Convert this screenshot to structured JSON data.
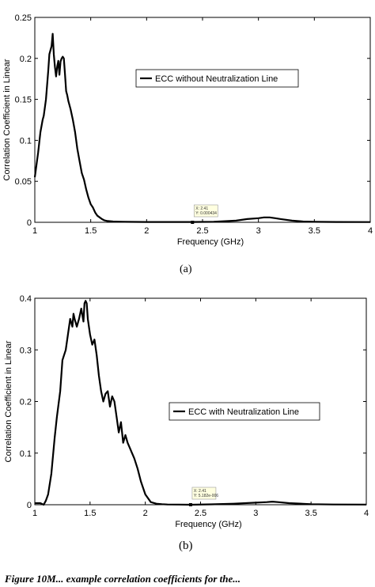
{
  "chart_data": [
    {
      "type": "line",
      "panel_label": "(a)",
      "xlabel": "Frequency (GHz)",
      "ylabel": "Correlation Coefficient in Linear",
      "xlim": [
        1,
        4
      ],
      "ylim": [
        0,
        0.25
      ],
      "xticks": [
        "1",
        "1.5",
        "2",
        "2.5",
        "3",
        "3.5",
        "4"
      ],
      "yticks": [
        "0",
        "0.05",
        "0.1",
        "0.15",
        "0.2",
        "0.25"
      ],
      "legend": "inside-right",
      "grid": false,
      "datatip": {
        "x_text": "X: 2.41",
        "y_text": "Y: 0.000434",
        "x": 2.41
      },
      "series": [
        {
          "name": "ECC without Neutralization Line",
          "color": "#000000",
          "x": [
            1.0,
            1.01,
            1.03,
            1.05,
            1.07,
            1.08,
            1.1,
            1.12,
            1.13,
            1.15,
            1.16,
            1.17,
            1.18,
            1.19,
            1.2,
            1.21,
            1.22,
            1.23,
            1.24,
            1.25,
            1.26,
            1.27,
            1.28,
            1.29,
            1.3,
            1.32,
            1.34,
            1.36,
            1.38,
            1.4,
            1.42,
            1.44,
            1.46,
            1.48,
            1.5,
            1.52,
            1.54,
            1.56,
            1.58,
            1.6,
            1.62,
            1.65,
            1.7,
            1.75,
            1.8,
            1.9,
            2.0,
            2.2,
            2.41,
            2.6,
            2.8,
            2.9,
            3.0,
            3.05,
            3.1,
            3.15,
            3.2,
            3.3,
            3.4,
            3.5,
            3.7,
            4.0
          ],
          "y": [
            0.055,
            0.065,
            0.085,
            0.11,
            0.125,
            0.13,
            0.15,
            0.185,
            0.205,
            0.215,
            0.23,
            0.205,
            0.19,
            0.178,
            0.19,
            0.197,
            0.18,
            0.196,
            0.2,
            0.202,
            0.2,
            0.18,
            0.16,
            0.155,
            0.148,
            0.138,
            0.125,
            0.11,
            0.09,
            0.075,
            0.06,
            0.052,
            0.04,
            0.03,
            0.022,
            0.018,
            0.012,
            0.008,
            0.006,
            0.004,
            0.0025,
            0.0015,
            0.001,
            0.0008,
            0.0006,
            0.0005,
            0.0004,
            0.0004,
            0.000434,
            0.0006,
            0.002,
            0.004,
            0.005,
            0.006,
            0.006,
            0.005,
            0.004,
            0.002,
            0.001,
            0.0006,
            0.0004,
            0.0003
          ]
        }
      ]
    },
    {
      "type": "line",
      "panel_label": "(b)",
      "xlabel": "Frequency (GHz)",
      "ylabel": "Correlation Coefficient in Linear",
      "xlim": [
        1,
        4
      ],
      "ylim": [
        0,
        0.4
      ],
      "xticks": [
        "1",
        "1.5",
        "2",
        "2.5",
        "3",
        "3.5",
        "4"
      ],
      "yticks": [
        "0",
        "0.1",
        "0.2",
        "0.3",
        "0.4"
      ],
      "legend": "inside-right",
      "grid": false,
      "datatip": {
        "x_text": "X: 2.41",
        "y_text": "Y: 5.182e-006",
        "x": 2.41
      },
      "series": [
        {
          "name": "ECC with Neutralization Line",
          "color": "#000000",
          "x": [
            1.0,
            1.05,
            1.08,
            1.1,
            1.12,
            1.15,
            1.18,
            1.2,
            1.23,
            1.25,
            1.28,
            1.3,
            1.32,
            1.34,
            1.35,
            1.36,
            1.38,
            1.4,
            1.42,
            1.44,
            1.45,
            1.46,
            1.47,
            1.48,
            1.5,
            1.52,
            1.54,
            1.56,
            1.58,
            1.6,
            1.62,
            1.64,
            1.66,
            1.68,
            1.7,
            1.72,
            1.74,
            1.76,
            1.78,
            1.8,
            1.82,
            1.84,
            1.86,
            1.88,
            1.9,
            1.93,
            1.96,
            2.0,
            2.05,
            2.1,
            2.15,
            2.2,
            2.3,
            2.41,
            2.6,
            2.8,
            3.0,
            3.1,
            3.15,
            3.2,
            3.3,
            3.5,
            3.7,
            4.0
          ],
          "y": [
            0.003,
            0.003,
            0.0,
            0.008,
            0.02,
            0.06,
            0.13,
            0.17,
            0.22,
            0.28,
            0.3,
            0.33,
            0.36,
            0.345,
            0.37,
            0.36,
            0.345,
            0.36,
            0.38,
            0.355,
            0.39,
            0.395,
            0.39,
            0.36,
            0.33,
            0.31,
            0.32,
            0.29,
            0.25,
            0.22,
            0.2,
            0.215,
            0.22,
            0.19,
            0.21,
            0.2,
            0.17,
            0.14,
            0.16,
            0.12,
            0.135,
            0.12,
            0.11,
            0.1,
            0.09,
            0.07,
            0.045,
            0.02,
            0.005,
            0.002,
            0.001,
            0.0005,
            0.0003,
            5e-06,
            0.0008,
            0.002,
            0.004,
            0.005,
            0.006,
            0.005,
            0.003,
            0.001,
            0.0005,
            0.0003
          ]
        }
      ]
    }
  ],
  "caption": "Figure 10M... example correlation coefficients for the..."
}
